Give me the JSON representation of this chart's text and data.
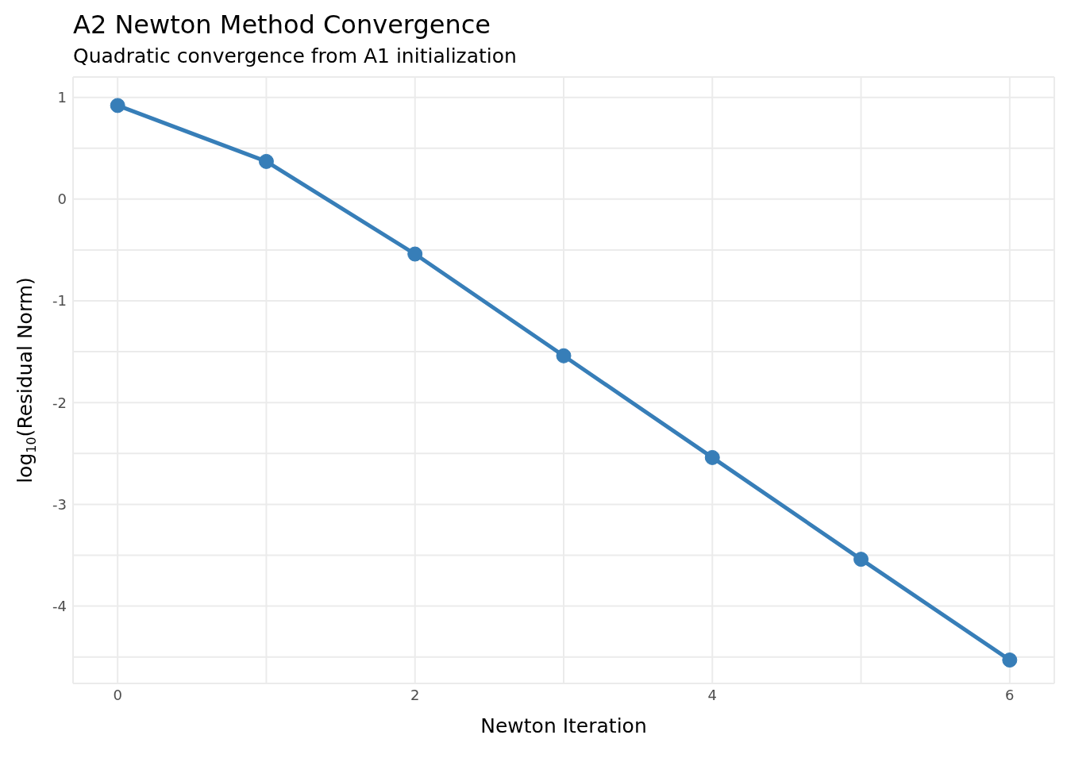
{
  "chart_data": {
    "type": "line",
    "title": "A2 Newton Method Convergence",
    "subtitle": "Quadratic convergence from A1 initialization",
    "xlabel": "Newton Iteration",
    "ylabel": "log$_{10}$(Residual Norm)",
    "x": [
      0,
      1,
      2,
      3,
      4,
      5,
      6
    ],
    "series": [
      {
        "color": "#377eb8",
        "values": [
          0.92,
          0.37,
          -0.54,
          -1.54,
          -2.54,
          -3.54,
          -4.53
        ]
      }
    ],
    "xlim": [
      -0.3,
      6.3
    ],
    "ylim": [
      -4.76,
      1.2
    ],
    "xticks": [
      0,
      {
        "value": 1,
        "label": null
      },
      2,
      {
        "value": 3,
        "label": null
      },
      4,
      {
        "value": 5,
        "label": null
      },
      6
    ],
    "yticks": [
      {
        "value": -4.5,
        "label": null
      },
      -4,
      {
        "value": -3.5,
        "label": null
      },
      -3,
      {
        "value": -2.5,
        "label": null
      },
      -2,
      {
        "value": -1.5,
        "label": null
      },
      -1,
      {
        "value": -0.5,
        "label": null
      },
      0,
      {
        "value": 0.5,
        "label": null
      },
      1
    ],
    "grid": true,
    "marker": "circle",
    "line_style": "solid"
  }
}
